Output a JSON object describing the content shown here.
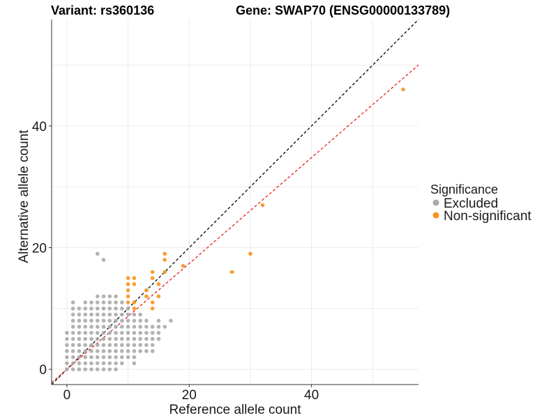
{
  "header": {
    "variant": "Variant: rs360136",
    "gene": "Gene: SWAP70 (ENSG00000133789)"
  },
  "chart_data": {
    "type": "scatter",
    "xlabel": "Reference allele count",
    "ylabel": "Alternative allele count",
    "xlim": [
      -2.5,
      57.5
    ],
    "ylim": [
      -2.5,
      57.5
    ],
    "x_ticks": [
      0,
      20,
      40
    ],
    "y_ticks": [
      0,
      20,
      40
    ],
    "grid": true,
    "legend": {
      "title": "Significance",
      "position": "right",
      "entries": [
        {
          "label": "Excluded",
          "color": "#aaaaaa"
        },
        {
          "label": "Non-significant",
          "color": "#f7941d"
        }
      ]
    },
    "reference_lines": [
      {
        "slope": 1.0,
        "intercept": 0,
        "color": "#000000",
        "style": "dashed"
      },
      {
        "slope": 0.87,
        "intercept": 0,
        "color": "#e8201b",
        "style": "dashed"
      }
    ],
    "series": [
      {
        "name": "Excluded",
        "color": "#aaaaaa",
        "points": [
          [
            0,
            0
          ],
          [
            0,
            1
          ],
          [
            0,
            2
          ],
          [
            0,
            3
          ],
          [
            0,
            4
          ],
          [
            0,
            5
          ],
          [
            0,
            6
          ],
          [
            1,
            0
          ],
          [
            1,
            1
          ],
          [
            1,
            2
          ],
          [
            1,
            3
          ],
          [
            1,
            4
          ],
          [
            1,
            5
          ],
          [
            1,
            6
          ],
          [
            1,
            7
          ],
          [
            1,
            8
          ],
          [
            1,
            9
          ],
          [
            1,
            10
          ],
          [
            1,
            11
          ],
          [
            2,
            0
          ],
          [
            2,
            1
          ],
          [
            2,
            2
          ],
          [
            2,
            3
          ],
          [
            2,
            4
          ],
          [
            2,
            5
          ],
          [
            2,
            6
          ],
          [
            2,
            7
          ],
          [
            2,
            8
          ],
          [
            2,
            9
          ],
          [
            2,
            10
          ],
          [
            3,
            0
          ],
          [
            3,
            1
          ],
          [
            3,
            2
          ],
          [
            3,
            3
          ],
          [
            3,
            4
          ],
          [
            3,
            5
          ],
          [
            3,
            6
          ],
          [
            3,
            7
          ],
          [
            3,
            8
          ],
          [
            3,
            9
          ],
          [
            3,
            10
          ],
          [
            3,
            11
          ],
          [
            4,
            0
          ],
          [
            4,
            1
          ],
          [
            4,
            2
          ],
          [
            4,
            3
          ],
          [
            4,
            4
          ],
          [
            4,
            5
          ],
          [
            4,
            6
          ],
          [
            4,
            7
          ],
          [
            4,
            8
          ],
          [
            4,
            9
          ],
          [
            4,
            10
          ],
          [
            4,
            11
          ],
          [
            5,
            0
          ],
          [
            5,
            1
          ],
          [
            5,
            2
          ],
          [
            5,
            3
          ],
          [
            5,
            4
          ],
          [
            5,
            5
          ],
          [
            5,
            6
          ],
          [
            5,
            7
          ],
          [
            5,
            8
          ],
          [
            5,
            9
          ],
          [
            5,
            10
          ],
          [
            5,
            11
          ],
          [
            5,
            12
          ],
          [
            6,
            0
          ],
          [
            6,
            1
          ],
          [
            6,
            2
          ],
          [
            6,
            3
          ],
          [
            6,
            4
          ],
          [
            6,
            5
          ],
          [
            6,
            6
          ],
          [
            6,
            7
          ],
          [
            6,
            8
          ],
          [
            6,
            9
          ],
          [
            6,
            10
          ],
          [
            6,
            11
          ],
          [
            6,
            12
          ],
          [
            7,
            0
          ],
          [
            7,
            1
          ],
          [
            7,
            2
          ],
          [
            7,
            3
          ],
          [
            7,
            4
          ],
          [
            7,
            5
          ],
          [
            7,
            6
          ],
          [
            7,
            7
          ],
          [
            7,
            8
          ],
          [
            7,
            9
          ],
          [
            7,
            10
          ],
          [
            7,
            11
          ],
          [
            7,
            12
          ],
          [
            8,
            0
          ],
          [
            8,
            1
          ],
          [
            8,
            2
          ],
          [
            8,
            3
          ],
          [
            8,
            4
          ],
          [
            8,
            5
          ],
          [
            8,
            6
          ],
          [
            8,
            7
          ],
          [
            8,
            8
          ],
          [
            8,
            9
          ],
          [
            8,
            10
          ],
          [
            8,
            11
          ],
          [
            8,
            12
          ],
          [
            9,
            1
          ],
          [
            9,
            2
          ],
          [
            9,
            3
          ],
          [
            9,
            4
          ],
          [
            9,
            5
          ],
          [
            9,
            6
          ],
          [
            9,
            7
          ],
          [
            9,
            8
          ],
          [
            9,
            9
          ],
          [
            9,
            10
          ],
          [
            9,
            11
          ],
          [
            10,
            2
          ],
          [
            10,
            3
          ],
          [
            10,
            4
          ],
          [
            10,
            5
          ],
          [
            10,
            6
          ],
          [
            10,
            7
          ],
          [
            10,
            8
          ],
          [
            10,
            9
          ],
          [
            10,
            10
          ],
          [
            11,
            1
          ],
          [
            11,
            2
          ],
          [
            11,
            3
          ],
          [
            11,
            4
          ],
          [
            11,
            5
          ],
          [
            11,
            6
          ],
          [
            11,
            7
          ],
          [
            11,
            8
          ],
          [
            11,
            9
          ],
          [
            12,
            3
          ],
          [
            12,
            4
          ],
          [
            12,
            5
          ],
          [
            12,
            6
          ],
          [
            12,
            7
          ],
          [
            12,
            8
          ],
          [
            12,
            9
          ],
          [
            13,
            3
          ],
          [
            13,
            4
          ],
          [
            13,
            5
          ],
          [
            13,
            6
          ],
          [
            13,
            7
          ],
          [
            13,
            8
          ],
          [
            14,
            3
          ],
          [
            14,
            4
          ],
          [
            14,
            5
          ],
          [
            14,
            6
          ],
          [
            14,
            7
          ],
          [
            15,
            5
          ],
          [
            15,
            6
          ],
          [
            15,
            7
          ],
          [
            15,
            8
          ],
          [
            16,
            7
          ],
          [
            17,
            8
          ],
          [
            5,
            19
          ],
          [
            6,
            18
          ]
        ]
      },
      {
        "name": "Non-significant",
        "color": "#f7941d",
        "points": [
          [
            10,
            15
          ],
          [
            11,
            15
          ],
          [
            10,
            14
          ],
          [
            11,
            14
          ],
          [
            10,
            13
          ],
          [
            10,
            12
          ],
          [
            10,
            11
          ],
          [
            11,
            11
          ],
          [
            11,
            10
          ],
          [
            13,
            13
          ],
          [
            13,
            12
          ],
          [
            14,
            11
          ],
          [
            14,
            10
          ],
          [
            14,
            16
          ],
          [
            14,
            15
          ],
          [
            15,
            14
          ],
          [
            15,
            12
          ],
          [
            16,
            19
          ],
          [
            16,
            18
          ],
          [
            16,
            16
          ],
          [
            19,
            17
          ],
          [
            27,
            16
          ],
          [
            30,
            19
          ],
          [
            32,
            27
          ],
          [
            55,
            46
          ]
        ]
      }
    ]
  }
}
